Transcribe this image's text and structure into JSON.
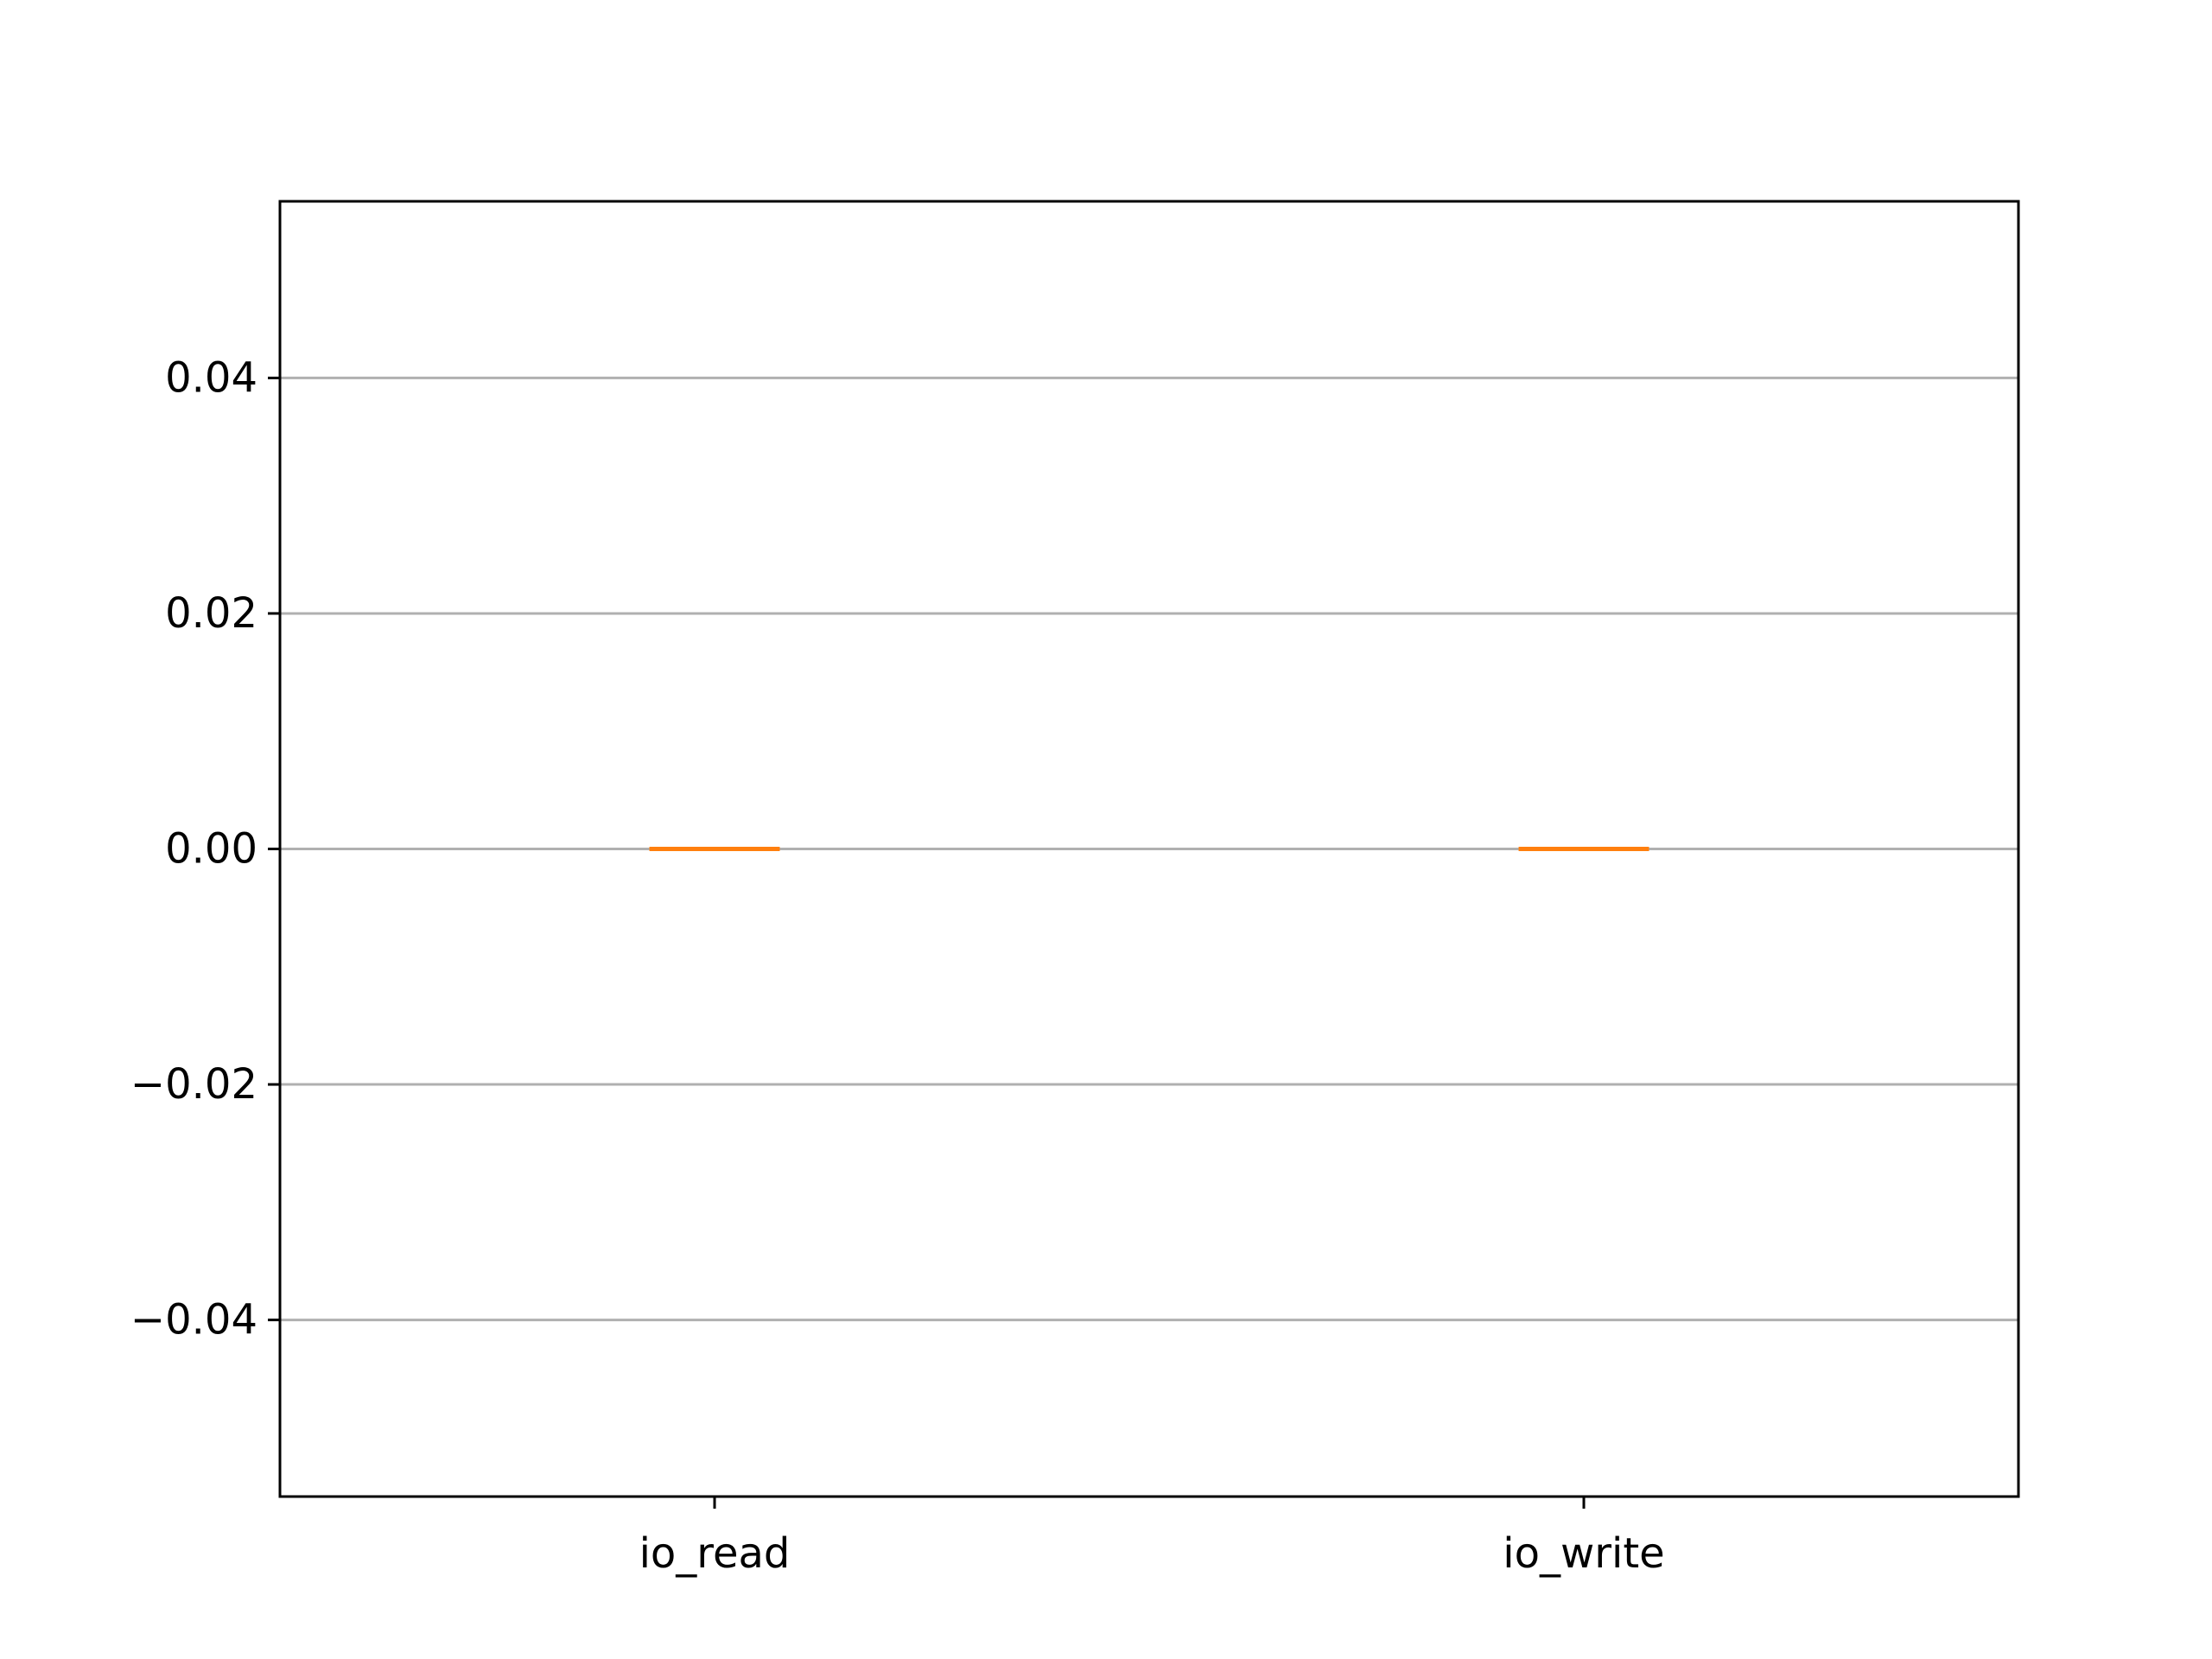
{
  "chart_data": {
    "type": "box",
    "categories": [
      "io_read",
      "io_write"
    ],
    "series": [
      {
        "values": [
          {
            "min": 0.0,
            "q1": 0.0,
            "median": 0.0,
            "q3": 0.0,
            "max": 0.0
          },
          {
            "min": 0.0,
            "q1": 0.0,
            "median": 0.0,
            "q3": 0.0,
            "max": 0.0
          }
        ]
      }
    ],
    "title": "",
    "xlabel": "",
    "ylabel": "",
    "ylim": [
      -0.055,
      0.055
    ],
    "yticks": [
      -0.04,
      -0.02,
      0.0,
      0.02,
      0.04
    ],
    "ytick_labels": [
      "−0.04",
      "−0.02",
      "0.00",
      "0.02",
      "0.04"
    ],
    "grid": "y",
    "legend": "none",
    "colors": {
      "median": "#ff7f0e",
      "grid": "#b0b0b0",
      "axes": "#000000"
    }
  }
}
